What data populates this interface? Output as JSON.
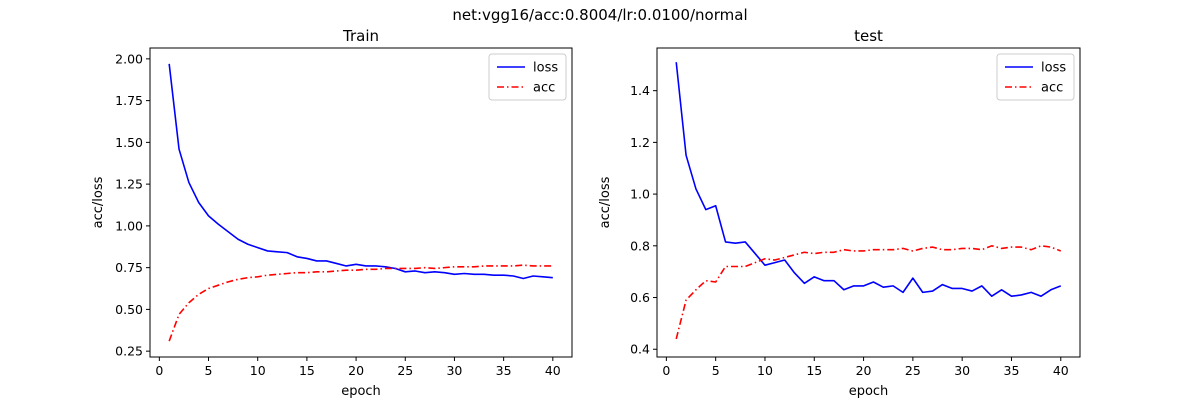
{
  "figure": {
    "suptitle": "net:vgg16/acc:0.8004/lr:0.0100/normal"
  },
  "chart_data": [
    {
      "type": "line",
      "title": "Train",
      "xlabel": "epoch",
      "ylabel": "acc/loss",
      "xlim": [
        -0.95,
        41.95
      ],
      "ylim": [
        0.215,
        2.065
      ],
      "xticks": [
        0,
        5,
        10,
        15,
        20,
        25,
        30,
        35,
        40
      ],
      "yticks": [
        0.25,
        0.5,
        0.75,
        1.0,
        1.25,
        1.5,
        1.75,
        2.0
      ],
      "ytick_labels": [
        "0.25",
        "0.50",
        "0.75",
        "1.00",
        "1.25",
        "1.50",
        "1.75",
        "2.00"
      ],
      "legend_position": "top-right",
      "grid": false,
      "x": [
        1,
        2,
        3,
        4,
        5,
        6,
        7,
        8,
        9,
        10,
        11,
        12,
        13,
        14,
        15,
        16,
        17,
        18,
        19,
        20,
        21,
        22,
        23,
        24,
        25,
        26,
        27,
        28,
        29,
        30,
        31,
        32,
        33,
        34,
        35,
        36,
        37,
        38,
        39,
        40
      ],
      "series": [
        {
          "name": "loss",
          "color": "#0000ff",
          "dash": "solid",
          "values": [
            1.97,
            1.46,
            1.26,
            1.14,
            1.06,
            1.01,
            0.965,
            0.92,
            0.89,
            0.87,
            0.85,
            0.845,
            0.84,
            0.815,
            0.805,
            0.79,
            0.79,
            0.775,
            0.76,
            0.77,
            0.76,
            0.76,
            0.755,
            0.745,
            0.725,
            0.73,
            0.72,
            0.725,
            0.72,
            0.71,
            0.715,
            0.71,
            0.71,
            0.705,
            0.705,
            0.7,
            0.685,
            0.7,
            0.695,
            0.69
          ]
        },
        {
          "name": "acc",
          "color": "#ff0000",
          "dash": "dashdot",
          "values": [
            0.31,
            0.47,
            0.54,
            0.59,
            0.625,
            0.645,
            0.665,
            0.68,
            0.69,
            0.695,
            0.705,
            0.71,
            0.715,
            0.72,
            0.72,
            0.725,
            0.725,
            0.73,
            0.735,
            0.735,
            0.74,
            0.74,
            0.745,
            0.745,
            0.745,
            0.745,
            0.75,
            0.745,
            0.75,
            0.755,
            0.755,
            0.755,
            0.76,
            0.76,
            0.76,
            0.76,
            0.765,
            0.76,
            0.76,
            0.76
          ]
        }
      ]
    },
    {
      "type": "line",
      "title": "test",
      "xlabel": "epoch",
      "ylabel": "acc/loss",
      "xlim": [
        -0.95,
        41.95
      ],
      "ylim": [
        0.37,
        1.565
      ],
      "xticks": [
        0,
        5,
        10,
        15,
        20,
        25,
        30,
        35,
        40
      ],
      "yticks": [
        0.4,
        0.6,
        0.8,
        1.0,
        1.2,
        1.4
      ],
      "ytick_labels": [
        "0.4",
        "0.6",
        "0.8",
        "1.0",
        "1.2",
        "1.4"
      ],
      "legend_position": "top-right",
      "grid": false,
      "x": [
        1,
        2,
        3,
        4,
        5,
        6,
        7,
        8,
        9,
        10,
        11,
        12,
        13,
        14,
        15,
        16,
        17,
        18,
        19,
        20,
        21,
        22,
        23,
        24,
        25,
        26,
        27,
        28,
        29,
        30,
        31,
        32,
        33,
        34,
        35,
        36,
        37,
        38,
        39,
        40
      ],
      "series": [
        {
          "name": "loss",
          "color": "#0000ff",
          "dash": "solid",
          "values": [
            1.51,
            1.15,
            1.02,
            0.94,
            0.955,
            0.815,
            0.81,
            0.815,
            0.77,
            0.725,
            0.735,
            0.745,
            0.695,
            0.655,
            0.68,
            0.665,
            0.665,
            0.63,
            0.645,
            0.645,
            0.66,
            0.64,
            0.645,
            0.62,
            0.675,
            0.62,
            0.625,
            0.65,
            0.635,
            0.635,
            0.625,
            0.645,
            0.605,
            0.63,
            0.605,
            0.61,
            0.62,
            0.605,
            0.63,
            0.645
          ]
        },
        {
          "name": "acc",
          "color": "#ff0000",
          "dash": "dashdot",
          "values": [
            0.44,
            0.59,
            0.63,
            0.665,
            0.66,
            0.72,
            0.72,
            0.72,
            0.735,
            0.75,
            0.745,
            0.755,
            0.765,
            0.775,
            0.77,
            0.775,
            0.775,
            0.785,
            0.78,
            0.78,
            0.785,
            0.785,
            0.785,
            0.79,
            0.78,
            0.79,
            0.795,
            0.785,
            0.785,
            0.79,
            0.79,
            0.785,
            0.8,
            0.79,
            0.795,
            0.795,
            0.785,
            0.8,
            0.795,
            0.78
          ]
        }
      ]
    }
  ]
}
